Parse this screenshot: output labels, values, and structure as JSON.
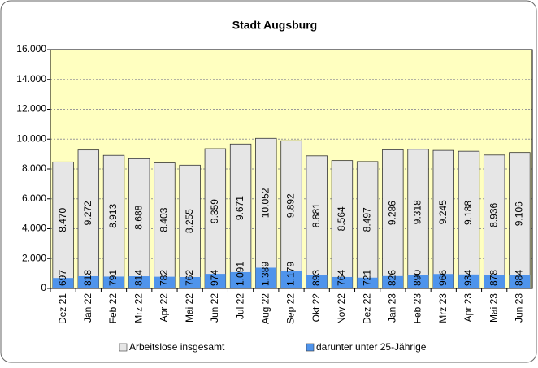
{
  "chart_data": {
    "type": "bar",
    "barmode": "overlay",
    "title": "Stadt Augsburg",
    "categories": [
      "Dez 21",
      "Jan 22",
      "Feb 22",
      "Mrz 22",
      "Apr 22",
      "Mai 22",
      "Jun 22",
      "Jul 22",
      "Aug 22",
      "Sep 22",
      "Okt 22",
      "Nov 22",
      "Dez 22",
      "Jan 23",
      "Feb 23",
      "Mrz 23",
      "Apr 23",
      "Mai 23",
      "Jun 23"
    ],
    "series": [
      {
        "name": "Arbeitslose insgesamt",
        "color": "#e6e6e6",
        "values": [
          8470,
          9272,
          8913,
          8688,
          8403,
          8255,
          9359,
          9671,
          10052,
          9892,
          8881,
          8564,
          8497,
          9286,
          9318,
          9245,
          9188,
          8936,
          9106
        ],
        "value_labels": [
          "8.470",
          "9.272",
          "8.913",
          "8.688",
          "8.403",
          "8.255",
          "9.359",
          "9.671",
          "10.052",
          "9.892",
          "8.881",
          "8.564",
          "8.497",
          "9.286",
          "9.318",
          "9.245",
          "9.188",
          "8.936",
          "9.106"
        ]
      },
      {
        "name": "darunter unter 25-Jährige",
        "color": "#4f94ec",
        "values": [
          697,
          818,
          791,
          814,
          782,
          762,
          974,
          1091,
          1389,
          1179,
          893,
          764,
          721,
          826,
          890,
          966,
          934,
          878,
          884
        ],
        "value_labels": [
          "697",
          "818",
          "791",
          "814",
          "782",
          "762",
          "974",
          "1.091",
          "1.389",
          "1.179",
          "893",
          "764",
          "721",
          "826",
          "890",
          "966",
          "934",
          "878",
          "884"
        ]
      }
    ],
    "ylim": [
      0,
      16000
    ],
    "yticks": [
      0,
      {
        "value": 2000,
        "label": "2.000"
      },
      {
        "value": 4000,
        "label": "4.000"
      },
      {
        "value": 6000,
        "label": "6.000"
      },
      {
        "value": 8000,
        "label": "8.000"
      },
      {
        "value": 10000,
        "label": "10.000"
      },
      {
        "value": 12000,
        "label": "12.000"
      },
      {
        "value": 14000,
        "label": "14.000"
      },
      {
        "value": 16000,
        "label": "16.000"
      }
    ],
    "grid": true,
    "plot_background": "#ffffc0",
    "legend": "bottom"
  }
}
